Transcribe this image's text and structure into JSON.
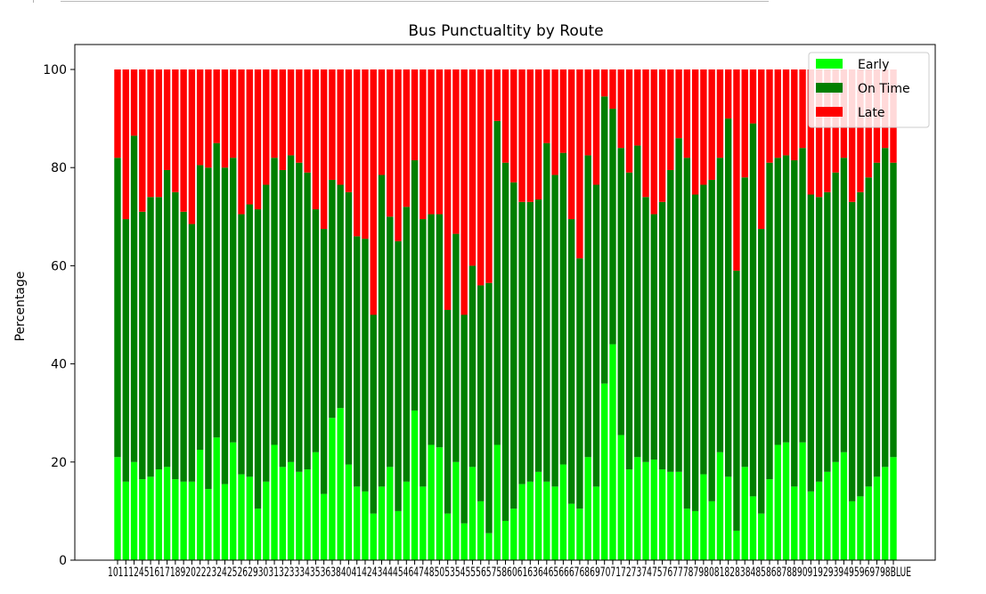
{
  "chart_data": {
    "type": "bar",
    "stacked": true,
    "title": "Bus Punctualtity by Route",
    "xlabel": "",
    "ylabel": "Percentage",
    "ylim": [
      0,
      100
    ],
    "yticks": [
      0,
      20,
      40,
      60,
      80,
      100
    ],
    "grid": false,
    "legend": "top-right",
    "categories": [
      "1",
      "10",
      "11",
      "12",
      "14",
      "15",
      "16",
      "17",
      "18",
      "19",
      "2",
      "20",
      "21",
      "22",
      "23",
      "24",
      "25",
      "26",
      "28",
      "29",
      "3",
      "30",
      "31",
      "32",
      "33",
      "34",
      "35",
      "36",
      "37",
      "38",
      "39",
      "4",
      "40",
      "41",
      "42",
      "43",
      "44",
      "45",
      "46",
      "47",
      "48",
      "49",
      "5",
      "50",
      "53",
      "54",
      "55",
      "56",
      "57",
      "58",
      "59",
      "6",
      "60",
      "61",
      "62",
      "63",
      "64",
      "65",
      "66",
      "67",
      "68",
      "69",
      "7",
      "70",
      "71",
      "72",
      "73",
      "74",
      "75",
      "76",
      "77",
      "78",
      "79",
      "8",
      "80",
      "81",
      "82",
      "83",
      "84",
      "85",
      "86",
      "87",
      "88",
      "89",
      "9",
      "90",
      "91",
      "92",
      "93",
      "94",
      "95",
      "96",
      "97",
      "98",
      "BLUE"
    ],
    "tick_label_text": "1011124516171892022232425262930313233343536384041424344454647485053545556575860616364656667686970717273747576777879808182838485868788909192939495969798BLUE",
    "series": [
      {
        "name": "Early",
        "color": "#00ff00",
        "values": [
          21,
          16,
          20,
          16.5,
          17,
          18.5,
          19,
          16.5,
          16,
          16,
          22.5,
          14.5,
          25,
          15.5,
          24,
          17.5,
          17,
          10.5,
          16,
          23.5,
          19,
          20,
          18,
          18.5,
          22,
          13.5,
          29,
          31,
          19.5,
          15,
          14,
          9.5,
          15,
          19,
          10,
          16,
          30.5,
          15,
          23.5,
          23,
          9.5,
          20,
          7.5,
          19,
          12,
          5.5,
          23.5,
          8,
          10.5,
          15.5,
          16,
          18,
          16,
          15,
          19.5,
          11.5,
          10.5,
          21,
          15,
          36,
          44,
          25.5,
          18.5,
          21,
          20,
          20.5,
          18.5,
          18,
          18,
          10.5,
          10,
          17.5,
          12,
          22,
          17,
          6,
          19,
          13,
          9.5,
          16.5,
          23.5,
          24,
          15,
          24,
          14,
          16,
          18,
          20,
          22,
          12,
          13,
          15,
          17,
          19,
          21
        ]
      },
      {
        "name": "On Time",
        "color": "#007f00",
        "values": [
          61,
          53.5,
          66.5,
          54.5,
          57,
          55.5,
          60.5,
          58.5,
          55,
          52.5,
          58,
          65.5,
          60,
          64.5,
          58,
          53,
          55.5,
          61,
          60.5,
          58.5,
          60.5,
          62.5,
          63,
          60.5,
          49.5,
          54,
          48.5,
          45.5,
          55.5,
          51,
          51.5,
          40.5,
          63.5,
          51,
          55,
          56,
          51,
          54.5,
          47,
          47.5,
          41.5,
          46.5,
          42.5,
          41,
          44,
          51,
          66,
          73,
          66.5,
          57.5,
          57,
          55.5,
          69,
          63.5,
          63.5,
          58,
          51,
          61.5,
          61.5,
          58.5,
          48,
          58.5,
          60.5,
          63.5,
          54,
          50,
          54.5,
          61.5,
          68,
          71.5,
          64.5,
          59,
          65.5,
          60,
          73,
          53,
          59,
          76,
          58,
          64.5,
          58.5,
          58.5,
          66.5,
          60,
          60.5,
          58,
          57,
          59,
          60,
          61,
          62,
          63,
          64,
          65,
          60
        ]
      },
      {
        "name": "Late",
        "color": "#ff0000",
        "values": [
          18,
          30.5,
          13.5,
          29,
          26,
          26,
          20.5,
          25,
          29,
          31.5,
          19.5,
          20,
          15,
          20,
          18,
          29.5,
          27.5,
          28.5,
          23.5,
          18,
          20.5,
          17.5,
          19,
          21,
          28.5,
          32.5,
          22.5,
          23.5,
          25,
          34,
          34.5,
          50,
          21.5,
          30,
          35,
          28,
          18.5,
          30.5,
          29.5,
          29.5,
          49,
          33.5,
          50,
          40,
          44,
          43.5,
          10.5,
          19,
          23,
          27,
          27,
          26.5,
          15,
          21.5,
          17,
          30.5,
          38.5,
          17.5,
          23.5,
          5.5,
          8,
          16,
          21,
          15.5,
          26,
          29.5,
          27,
          20.5,
          14,
          18,
          25.5,
          23.5,
          22.5,
          18,
          10,
          41,
          22,
          11,
          32.5,
          19,
          18,
          17.5,
          18.5,
          16,
          25.5,
          26,
          25,
          21,
          18,
          27,
          25,
          22,
          19,
          16,
          19
        ]
      }
    ]
  }
}
